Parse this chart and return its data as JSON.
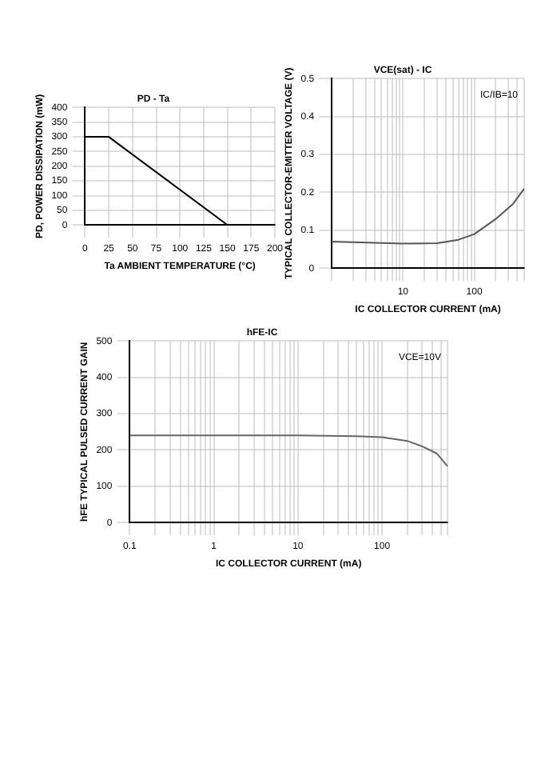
{
  "chart_data": [
    {
      "type": "line",
      "title": "PD - Ta",
      "xlabel": "Ta AMBIENT TEMPERATURE (°C)",
      "ylabel": "PD, POWER DISSIPATION (mW)",
      "x": [
        0,
        25,
        150
      ],
      "series": [
        {
          "color": "#000000",
          "values": [
            300,
            300,
            0
          ]
        }
      ],
      "xlim": [
        0,
        200
      ],
      "xticks": [
        0,
        25,
        50,
        75,
        100,
        125,
        150,
        175,
        200
      ],
      "ylim": [
        0,
        400
      ],
      "yticks": [
        0,
        50,
        100,
        150,
        200,
        250,
        300,
        350,
        400
      ],
      "grid": true,
      "marker": "none"
    },
    {
      "type": "line",
      "title": "VCE(sat) - IC",
      "xlabel": "IC COLLECTOR CURRENT (mA)",
      "ylabel": "TYPICAL COLLECTOR-EMITTER VOLTAGE (V)",
      "annotations": [
        "IC/IB=10"
      ],
      "x": [
        1,
        10,
        30,
        60,
        100,
        200,
        350,
        500
      ],
      "series": [
        {
          "color": "#555555",
          "values": [
            0.07,
            0.065,
            0.066,
            0.075,
            0.09,
            0.13,
            0.17,
            0.21
          ]
        }
      ],
      "log": "x",
      "xlim": [
        1,
        500
      ],
      "xticks": [
        {
          "value": 1,
          "label": null
        },
        {
          "value": 2,
          "label": null
        },
        {
          "value": 3,
          "label": null
        },
        {
          "value": 4,
          "label": null
        },
        {
          "value": 5,
          "label": null
        },
        {
          "value": 6,
          "label": null
        },
        {
          "value": 7,
          "label": null
        },
        {
          "value": 8,
          "label": null
        },
        {
          "value": 9,
          "label": null
        },
        10,
        {
          "value": 20,
          "label": null
        },
        {
          "value": 30,
          "label": null
        },
        {
          "value": 40,
          "label": null
        },
        {
          "value": 50,
          "label": null
        },
        {
          "value": 60,
          "label": null
        },
        {
          "value": 70,
          "label": null
        },
        {
          "value": 80,
          "label": null
        },
        {
          "value": 90,
          "label": null
        },
        100,
        {
          "value": 200,
          "label": null
        },
        {
          "value": 300,
          "label": null
        },
        {
          "value": 400,
          "label": null
        },
        {
          "value": 500,
          "label": null
        }
      ],
      "ylim": [
        0,
        0.5
      ],
      "yticks": [
        0,
        0.1,
        0.2,
        0.3,
        0.4,
        0.5
      ],
      "grid": true,
      "marker": "none"
    },
    {
      "type": "line",
      "title": "hFE-IC",
      "xlabel": "IC COLLECTOR CURRENT (mA)",
      "ylabel": "hFE TYPICAL PULSED CURRENT GAIN",
      "annotations": [
        "VCE=10V"
      ],
      "x": [
        0.1,
        1,
        10,
        50,
        100,
        200,
        300,
        450,
        600
      ],
      "series": [
        {
          "color": "#666666",
          "values": [
            240,
            240,
            240,
            238,
            235,
            225,
            210,
            190,
            155
          ]
        }
      ],
      "log": "x",
      "xlim": [
        0.1,
        600
      ],
      "xticks": [
        0.1,
        {
          "value": 0.2,
          "label": null
        },
        {
          "value": 0.3,
          "label": null
        },
        {
          "value": 0.4,
          "label": null
        },
        {
          "value": 0.5,
          "label": null
        },
        {
          "value": 0.6,
          "label": null
        },
        {
          "value": 0.7,
          "label": null
        },
        {
          "value": 0.8,
          "label": null
        },
        {
          "value": 0.9,
          "label": null
        },
        1,
        {
          "value": 2,
          "label": null
        },
        {
          "value": 3,
          "label": null
        },
        {
          "value": 4,
          "label": null
        },
        {
          "value": 5,
          "label": null
        },
        {
          "value": 6,
          "label": null
        },
        {
          "value": 7,
          "label": null
        },
        {
          "value": 8,
          "label": null
        },
        {
          "value": 9,
          "label": null
        },
        10,
        {
          "value": 20,
          "label": null
        },
        {
          "value": 30,
          "label": null
        },
        {
          "value": 40,
          "label": null
        },
        {
          "value": 50,
          "label": null
        },
        {
          "value": 60,
          "label": null
        },
        {
          "value": 70,
          "label": null
        },
        {
          "value": 80,
          "label": null
        },
        {
          "value": 90,
          "label": null
        },
        100,
        {
          "value": 200,
          "label": null
        },
        {
          "value": 300,
          "label": null
        },
        {
          "value": 400,
          "label": null
        },
        {
          "value": 500,
          "label": null
        },
        {
          "value": 600,
          "label": null
        }
      ],
      "ylim": [
        0,
        500
      ],
      "yticks": [
        0,
        100,
        200,
        300,
        400,
        500
      ],
      "grid": true,
      "marker": "none"
    }
  ]
}
